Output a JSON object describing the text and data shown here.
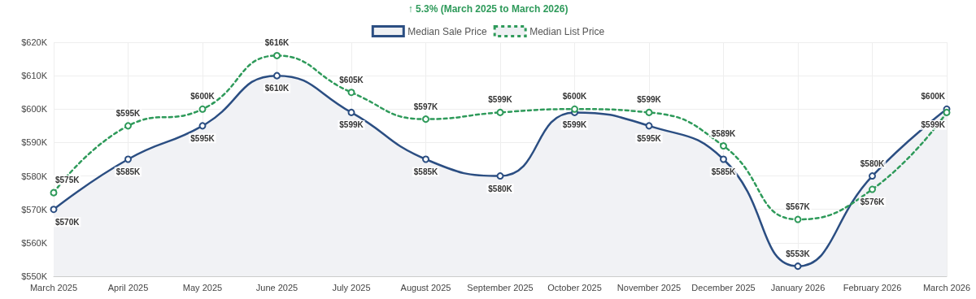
{
  "chart_data": {
    "type": "line",
    "title": "↑ 5.3% (March 2025 to March 2026)",
    "categories": [
      "March 2025",
      "April 2025",
      "May 2025",
      "June 2025",
      "July 2025",
      "August 2025",
      "September 2025",
      "October 2025",
      "November 2025",
      "December 2025",
      "January 2026",
      "February 2026",
      "March 2026"
    ],
    "series": [
      {
        "name": "Median Sale Price",
        "type": "area",
        "color": "#2b4e82",
        "line_style": "solid",
        "values": [
          570,
          585,
          595,
          610,
          599,
          585,
          580,
          599,
          595,
          585,
          553,
          580,
          600
        ],
        "value_labels": [
          "$570K",
          "$585K",
          "$595K",
          "$610K",
          "$599K",
          "$585K",
          "$580K",
          "$599K",
          "$595K",
          "$585K",
          "$553K",
          "$580K",
          "$600K"
        ]
      },
      {
        "name": "Median List Price",
        "type": "line",
        "color": "#2e9a5a",
        "line_style": "dotted",
        "values": [
          575,
          595,
          600,
          616,
          605,
          597,
          599,
          600,
          599,
          589,
          567,
          576,
          599
        ],
        "value_labels": [
          "$575K",
          "$595K",
          "$600K",
          "$616K",
          "$605K",
          "$597K",
          "$599K",
          "$600K",
          "$599K",
          "$589K",
          "$567K",
          "$576K",
          "$599K"
        ]
      }
    ],
    "ylim": [
      550,
      620
    ],
    "yticks": [
      {
        "value": 550,
        "label": "$550K"
      },
      {
        "value": 560,
        "label": "$560K"
      },
      {
        "value": 570,
        "label": "$570K"
      },
      {
        "value": 580,
        "label": "$580K"
      },
      {
        "value": 590,
        "label": "$590K"
      },
      {
        "value": 600,
        "label": "$600K"
      },
      {
        "value": 610,
        "label": "$610K"
      },
      {
        "value": 620,
        "label": "$620K"
      }
    ],
    "grid": true,
    "legend": "top",
    "marker": "circle"
  }
}
